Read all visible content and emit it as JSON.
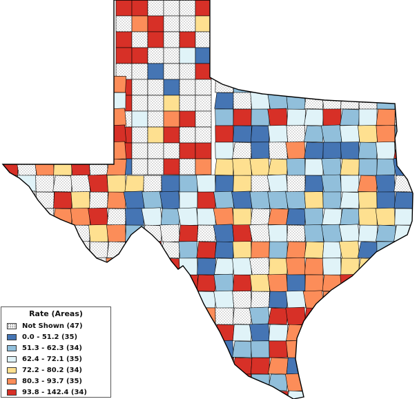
{
  "legend": {
    "title": "Rate (Areas)",
    "classes": [
      {
        "label": "Not Shown (47)",
        "color": "pattern"
      },
      {
        "label": "0.0 - 51.2 (35)",
        "color": "#4575b4"
      },
      {
        "label": "51.3 - 62.3 (34)",
        "color": "#91bfdb"
      },
      {
        "label": "62.4 - 72.1 (35)",
        "color": "#e0f3f8"
      },
      {
        "label": "72.2 - 80.2 (34)",
        "color": "#fee090"
      },
      {
        "label": "80.3 - 93.7 (35)",
        "color": "#fc8d59"
      },
      {
        "label": "93.8 - 142.4 (34)",
        "color": "#d73027"
      }
    ]
  },
  "map": {
    "region": "Texas",
    "class_colors": [
      "pattern",
      "#4575b4",
      "#91bfdb",
      "#e0f3f8",
      "#fee090",
      "#fc8d59",
      "#d73027"
    ]
  }
}
